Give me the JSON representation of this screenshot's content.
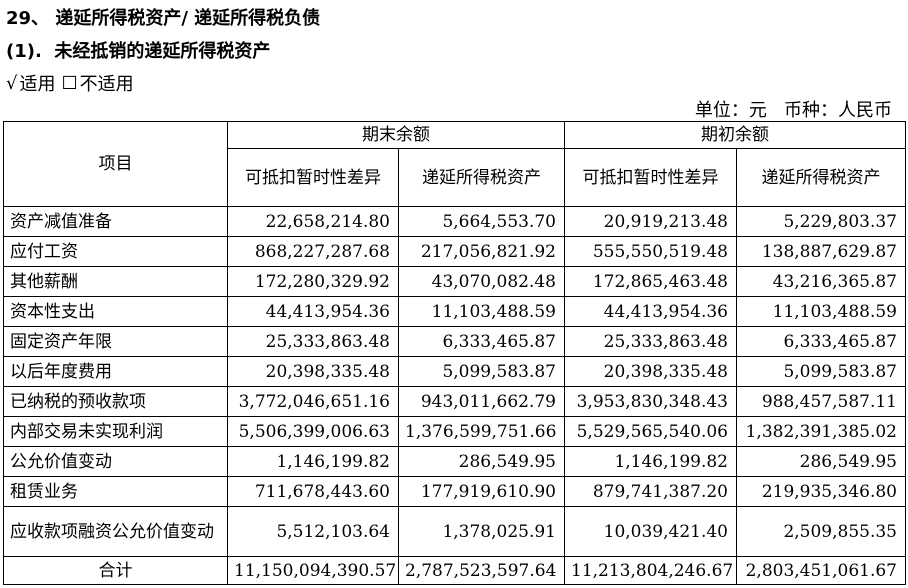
{
  "heading": {
    "number": "29、",
    "title": "递延所得税资产/ 递延所得税负债"
  },
  "subheading": {
    "number": "(1).",
    "title": "未经抵销的递延所得税资产"
  },
  "options": {
    "applicable_mark": "√",
    "applicable_label": "适用",
    "not_applicable_mark": "☐",
    "not_applicable_label": "不适用"
  },
  "unit_line": "单位：元   币种：人民币",
  "table": {
    "item_header": "项目",
    "group_headers": [
      "期末余额",
      "期初余额"
    ],
    "sub_headers": [
      "可抵扣暂时性差异",
      "递延所得税资产",
      "可抵扣暂时性差异",
      "递延所得税资产"
    ],
    "rows": [
      {
        "label": "资产减值准备",
        "c1": "22,658,214.80",
        "c2": "5,664,553.70",
        "c3": "20,919,213.48",
        "c4": "5,229,803.37"
      },
      {
        "label": "应付工资",
        "c1": "868,227,287.68",
        "c2": "217,056,821.92",
        "c3": "555,550,519.48",
        "c4": "138,887,629.87"
      },
      {
        "label": "其他薪酬",
        "c1": "172,280,329.92",
        "c2": "43,070,082.48",
        "c3": "172,865,463.48",
        "c4": "43,216,365.87"
      },
      {
        "label": "资本性支出",
        "c1": "44,413,954.36",
        "c2": "11,103,488.59",
        "c3": "44,413,954.36",
        "c4": "11,103,488.59"
      },
      {
        "label": "固定资产年限",
        "c1": "25,333,863.48",
        "c2": "6,333,465.87",
        "c3": "25,333,863.48",
        "c4": "6,333,465.87"
      },
      {
        "label": "以后年度费用",
        "c1": "20,398,335.48",
        "c2": "5,099,583.87",
        "c3": "20,398,335.48",
        "c4": "5,099,583.87"
      },
      {
        "label": "已纳税的预收款项",
        "c1": "3,772,046,651.16",
        "c2": "943,011,662.79",
        "c3": "3,953,830,348.43",
        "c4": "988,457,587.11"
      },
      {
        "label": "内部交易未实现利润",
        "c1": "5,506,399,006.63",
        "c2": "1,376,599,751.66",
        "c3": "5,529,565,540.06",
        "c4": "1,382,391,385.02"
      },
      {
        "label": "公允价值变动",
        "c1": "1,146,199.82",
        "c2": "286,549.95",
        "c3": "1,146,199.82",
        "c4": "286,549.95"
      },
      {
        "label": "租赁业务",
        "c1": "711,678,443.60",
        "c2": "177,919,610.90",
        "c3": "879,741,387.20",
        "c4": "219,935,346.80"
      },
      {
        "label": "应收款项融资公允价值变动",
        "c1": "5,512,103.64",
        "c2": "1,378,025.91",
        "c3": "10,039,421.40",
        "c4": "2,509,855.35"
      }
    ],
    "total": {
      "label": "合计",
      "c1": "11,150,094,390.57",
      "c2": "2,787,523,597.64",
      "c3": "11,213,804,246.67",
      "c4": "2,803,451,061.67"
    }
  }
}
